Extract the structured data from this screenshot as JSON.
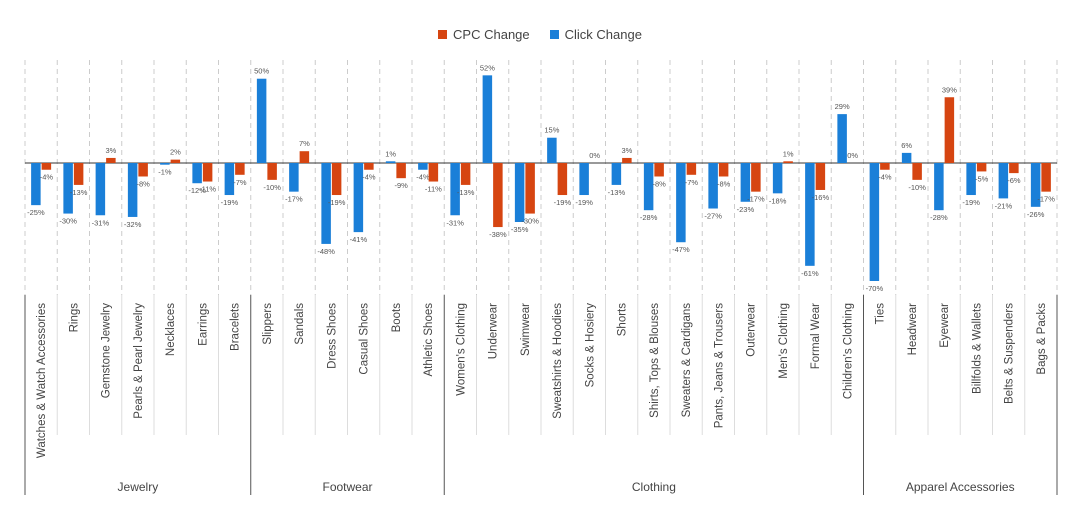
{
  "colors": {
    "cpc": "#D64511",
    "click": "#1A7FD8",
    "axis": "#555555",
    "grid": "#CCCCCC",
    "label": "#555555"
  },
  "chart_data": {
    "type": "bar",
    "title": "",
    "xlabel": "",
    "ylabel": "",
    "ylim": [
      -70,
      52
    ],
    "legend": [
      "CPC Change",
      "Click Change"
    ],
    "series_names": {
      "cpc": "CPC Change",
      "click": "Click Change"
    },
    "groups": [
      {
        "name": "Jewelry",
        "items": [
          {
            "label": "Watches & Watch Accessories",
            "cpc": -4,
            "click": -25
          },
          {
            "label": "Rings",
            "cpc": -13,
            "click": -30
          },
          {
            "label": "Gemstone Jewelry",
            "cpc": 3,
            "click": -31
          },
          {
            "label": "Pearls & Pearl Jewelry",
            "cpc": -8,
            "click": -32
          },
          {
            "label": "Necklaces",
            "cpc": 2,
            "click": -1
          },
          {
            "label": "Earrings",
            "cpc": -11,
            "click": -12
          },
          {
            "label": "Bracelets",
            "cpc": -7,
            "click": -19
          }
        ]
      },
      {
        "name": "Footwear",
        "items": [
          {
            "label": "Slippers",
            "cpc": -10,
            "click": 50
          },
          {
            "label": "Sandals",
            "cpc": 7,
            "click": -17
          },
          {
            "label": "Dress Shoes",
            "cpc": -19,
            "click": -48
          },
          {
            "label": "Casual Shoes",
            "cpc": -4,
            "click": -41
          },
          {
            "label": "Boots",
            "cpc": -9,
            "click": 1
          },
          {
            "label": "Athletic Shoes",
            "cpc": -11,
            "click": -4
          }
        ]
      },
      {
        "name": "Clothing",
        "items": [
          {
            "label": "Women's Clothing",
            "cpc": -13,
            "click": -31
          },
          {
            "label": "Underwear",
            "cpc": -38,
            "click": 52
          },
          {
            "label": "Swimwear",
            "cpc": -30,
            "click": -35
          },
          {
            "label": "Sweatshirts & Hoodies",
            "cpc": -19,
            "click": 15
          },
          {
            "label": "Socks & Hosiery",
            "cpc": 0,
            "click": -19
          },
          {
            "label": "Shorts",
            "cpc": 3,
            "click": -13
          },
          {
            "label": "Shirts, Tops & Blouses",
            "cpc": -8,
            "click": -28
          },
          {
            "label": "Sweaters & Cardigans",
            "cpc": -7,
            "click": -47
          },
          {
            "label": "Pants, Jeans & Trousers",
            "cpc": -8,
            "click": -27
          },
          {
            "label": "Outerwear",
            "cpc": -17,
            "click": -23
          },
          {
            "label": "Men's Clothing",
            "cpc": 1,
            "click": -18
          },
          {
            "label": "Formal Wear",
            "cpc": -16,
            "click": -61
          },
          {
            "label": "Children's Clothing",
            "cpc": 0,
            "click": 29
          }
        ]
      },
      {
        "name": "Apparel Accessories",
        "items": [
          {
            "label": "Ties",
            "cpc": -4,
            "click": -70
          },
          {
            "label": "Headwear",
            "cpc": -10,
            "click": 6
          },
          {
            "label": "Eyewear",
            "cpc": 39,
            "click": -28
          },
          {
            "label": "Billfolds & Wallets",
            "cpc": -5,
            "click": -19
          },
          {
            "label": "Belts & Suspenders",
            "cpc": -6,
            "click": -21
          },
          {
            "label": "Bags & Packs",
            "cpc": -17,
            "click": -26
          }
        ]
      }
    ]
  }
}
